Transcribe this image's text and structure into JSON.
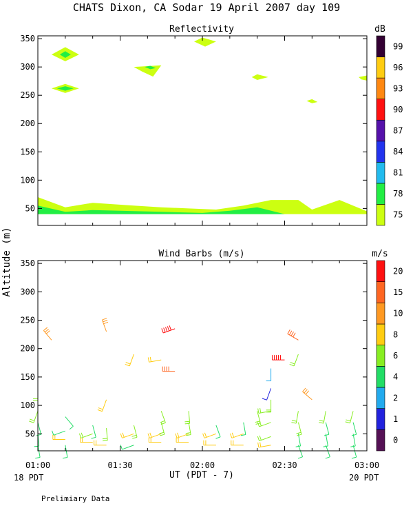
{
  "figure": {
    "title": "CHATS Dixon, CA  Sodar  19 April 2007  day 109",
    "ylabel": "Altitude (m)",
    "xlabel": "UT  (PDT - 7)",
    "footer_left": "18 PDT",
    "footer_right": "20 PDT",
    "note": "Prelimiary Data"
  },
  "chart_data": [
    {
      "type": "heatmap",
      "title": "Reflectivity",
      "unit": "dB",
      "x_ticks": [
        "01:00",
        "01:30",
        "02:00",
        "02:30",
        "03:00"
      ],
      "xlim": [
        "01:00",
        "03:00"
      ],
      "ylim": [
        20,
        355
      ],
      "y_ticks": [
        50,
        100,
        150,
        200,
        250,
        300,
        350
      ],
      "colorbar": {
        "labels": [
          "75",
          "78",
          "81",
          "84",
          "87",
          "90",
          "93",
          "96",
          "99"
        ],
        "colors": [
          "#ccff11",
          "#22ee44",
          "#22bbee",
          "#2233ee",
          "#5511aa",
          "#ff1111",
          "#ff8811",
          "#ffcc11",
          "#330033"
        ]
      },
      "contours": [
        {
          "level": 75,
          "color": "#ccff11",
          "points": [
            [
              "01:00",
              70
            ],
            [
              "01:10",
              52
            ],
            [
              "01:20",
              60
            ],
            [
              "01:35",
              55
            ],
            [
              "01:45",
              52
            ],
            [
              "01:55",
              50
            ],
            [
              "02:05",
              48
            ],
            [
              "02:15",
              55
            ],
            [
              "02:25",
              65
            ],
            [
              "02:35",
              65
            ],
            [
              "02:40",
              48
            ],
            [
              "02:50",
              65
            ],
            [
              "03:00",
              45
            ],
            [
              "03:00",
              40
            ],
            [
              "01:00",
              40
            ]
          ]
        },
        {
          "level": 78,
          "color": "#22ee44",
          "points": [
            [
              "01:00",
              55
            ],
            [
              "01:10",
              44
            ],
            [
              "01:20",
              47
            ],
            [
              "01:30",
              46
            ],
            [
              "01:45",
              44
            ],
            [
              "02:00",
              42
            ],
            [
              "02:10",
              46
            ],
            [
              "02:20",
              52
            ],
            [
              "02:30",
              40
            ],
            [
              "01:00",
              40
            ]
          ]
        },
        {
          "level": 75,
          "color": "#ccff11",
          "points": [
            [
              "01:05",
              322
            ],
            [
              "01:10",
              335
            ],
            [
              "01:15",
              322
            ],
            [
              "01:10",
              310
            ]
          ]
        },
        {
          "level": 78,
          "color": "#22ee44",
          "points": [
            [
              "01:08",
              322
            ],
            [
              "01:10",
              328
            ],
            [
              "01:12",
              322
            ],
            [
              "01:10",
              316
            ]
          ]
        },
        {
          "level": 75,
          "color": "#ccff11",
          "points": [
            [
              "01:05",
              262
            ],
            [
              "01:10",
              270
            ],
            [
              "01:15",
              262
            ],
            [
              "01:10",
              254
            ]
          ]
        },
        {
          "level": 78,
          "color": "#22ee44",
          "points": [
            [
              "01:07",
              262
            ],
            [
              "01:10",
              266
            ],
            [
              "01:13",
              262
            ],
            [
              "01:10",
              258
            ]
          ]
        },
        {
          "level": 75,
          "color": "#ccff11",
          "points": [
            [
              "01:35",
              300
            ],
            [
              "01:45",
              303
            ],
            [
              "01:42",
              283
            ],
            [
              "01:38",
              292
            ]
          ]
        },
        {
          "level": 78,
          "color": "#22ee44",
          "points": [
            [
              "01:39",
              300
            ],
            [
              "01:41",
              302
            ],
            [
              "01:43",
              298
            ],
            [
              "01:41",
              296
            ]
          ]
        },
        {
          "level": 75,
          "color": "#ccff11",
          "points": [
            [
              "01:57",
              345
            ],
            [
              "02:00",
              352
            ],
            [
              "02:05",
              345
            ],
            [
              "02:01",
              336
            ]
          ]
        },
        {
          "level": 75,
          "color": "#ccff11",
          "points": [
            [
              "02:18",
              282
            ],
            [
              "02:20",
              287
            ],
            [
              "02:24",
              282
            ],
            [
              "02:20",
              277
            ]
          ]
        },
        {
          "level": 75,
          "color": "#ccff11",
          "points": [
            [
              "02:38",
              240
            ],
            [
              "02:40",
              243
            ],
            [
              "02:42",
              238
            ],
            [
              "02:40",
              236
            ]
          ]
        },
        {
          "level": 75,
          "color": "#ccff11",
          "points": [
            [
              "02:57",
              282
            ],
            [
              "03:00",
              285
            ],
            [
              "03:00",
              276
            ],
            [
              "02:58",
              278
            ]
          ]
        }
      ]
    },
    {
      "type": "scatter",
      "title": "Wind Barbs (m/s)",
      "unit": "m/s",
      "x_ticks": [
        "01:00",
        "01:30",
        "02:00",
        "02:30",
        "03:00"
      ],
      "xlim": [
        "01:00",
        "03:00"
      ],
      "ylim": [
        20,
        355
      ],
      "y_ticks": [
        50,
        100,
        150,
        200,
        250,
        300,
        350
      ],
      "colorbar": {
        "labels": [
          "0",
          "1",
          "2",
          "4",
          "6",
          "8",
          "10",
          "15",
          "20"
        ],
        "colors": [
          "#551155",
          "#2222dd",
          "#22aaee",
          "#22dd66",
          "#88ee22",
          "#ffcc11",
          "#ff9922",
          "#ff6622",
          "#ff1111"
        ]
      },
      "barbs": [
        {
          "t": "01:00",
          "z": 30,
          "speed": 4,
          "dir": 170
        },
        {
          "t": "01:00",
          "z": 50,
          "speed": 4,
          "dir": 175
        },
        {
          "t": "01:00",
          "z": 70,
          "speed": 4,
          "dir": 165
        },
        {
          "t": "01:00",
          "z": 90,
          "speed": 6,
          "dir": 200
        },
        {
          "t": "01:00",
          "z": 130,
          "speed": 6,
          "dir": 180
        },
        {
          "t": "01:05",
          "z": 215,
          "speed": 10,
          "dir": 320
        },
        {
          "t": "01:10",
          "z": 30,
          "speed": 4,
          "dir": 170
        },
        {
          "t": "01:10",
          "z": 40,
          "speed": 8,
          "dir": 270
        },
        {
          "t": "01:10",
          "z": 55,
          "speed": 4,
          "dir": 250
        },
        {
          "t": "01:10",
          "z": 80,
          "speed": 4,
          "dir": 140
        },
        {
          "t": "01:20",
          "z": 35,
          "speed": 8,
          "dir": 270
        },
        {
          "t": "01:20",
          "z": 50,
          "speed": 6,
          "dir": 250
        },
        {
          "t": "01:20",
          "z": 65,
          "speed": 4,
          "dir": 165
        },
        {
          "t": "01:25",
          "z": 30,
          "speed": 8,
          "dir": 270
        },
        {
          "t": "01:25",
          "z": 60,
          "speed": 6,
          "dir": 175
        },
        {
          "t": "01:25",
          "z": 110,
          "speed": 8,
          "dir": 200
        },
        {
          "t": "01:25",
          "z": 230,
          "speed": 10,
          "dir": 340
        },
        {
          "t": "01:35",
          "z": 30,
          "speed": 4,
          "dir": 250
        },
        {
          "t": "01:35",
          "z": 50,
          "speed": 8,
          "dir": 250
        },
        {
          "t": "01:35",
          "z": 65,
          "speed": 6,
          "dir": 165
        },
        {
          "t": "01:35",
          "z": 190,
          "speed": 8,
          "dir": 200
        },
        {
          "t": "01:45",
          "z": 35,
          "speed": 8,
          "dir": 270
        },
        {
          "t": "01:45",
          "z": 50,
          "speed": 8,
          "dir": 250
        },
        {
          "t": "01:45",
          "z": 70,
          "speed": 6,
          "dir": 165
        },
        {
          "t": "01:45",
          "z": 90,
          "speed": 6,
          "dir": 160
        },
        {
          "t": "01:45",
          "z": 180,
          "speed": 8,
          "dir": 260
        },
        {
          "t": "01:50",
          "z": 235,
          "speed": 20,
          "dir": 250
        },
        {
          "t": "01:50",
          "z": 160,
          "speed": 15,
          "dir": 270
        },
        {
          "t": "01:55",
          "z": 35,
          "speed": 8,
          "dir": 270
        },
        {
          "t": "01:55",
          "z": 50,
          "speed": 8,
          "dir": 250
        },
        {
          "t": "01:55",
          "z": 70,
          "speed": 6,
          "dir": 170
        },
        {
          "t": "01:55",
          "z": 90,
          "speed": 6,
          "dir": 175
        },
        {
          "t": "02:05",
          "z": 30,
          "speed": 8,
          "dir": 270
        },
        {
          "t": "02:05",
          "z": 50,
          "speed": 8,
          "dir": 250
        },
        {
          "t": "02:05",
          "z": 65,
          "speed": 4,
          "dir": 160
        },
        {
          "t": "02:15",
          "z": 30,
          "speed": 8,
          "dir": 270
        },
        {
          "t": "02:15",
          "z": 50,
          "speed": 8,
          "dir": 250
        },
        {
          "t": "02:15",
          "z": 70,
          "speed": 4,
          "dir": 170
        },
        {
          "t": "02:20",
          "z": 90,
          "speed": 6,
          "dir": 165
        },
        {
          "t": "02:25",
          "z": 30,
          "speed": 8,
          "dir": 260
        },
        {
          "t": "02:25",
          "z": 45,
          "speed": 6,
          "dir": 250
        },
        {
          "t": "02:25",
          "z": 70,
          "speed": 6,
          "dir": 250
        },
        {
          "t": "02:25",
          "z": 90,
          "speed": 6,
          "dir": 260
        },
        {
          "t": "02:25",
          "z": 110,
          "speed": 6,
          "dir": 180
        },
        {
          "t": "02:25",
          "z": 130,
          "speed": 1,
          "dir": 200
        },
        {
          "t": "02:25",
          "z": 165,
          "speed": 2,
          "dir": 180
        },
        {
          "t": "02:30",
          "z": 180,
          "speed": 20,
          "dir": 270
        },
        {
          "t": "02:35",
          "z": 30,
          "speed": 4,
          "dir": 160
        },
        {
          "t": "02:35",
          "z": 50,
          "speed": 4,
          "dir": 170
        },
        {
          "t": "02:35",
          "z": 70,
          "speed": 6,
          "dir": 165
        },
        {
          "t": "02:35",
          "z": 90,
          "speed": 6,
          "dir": 190
        },
        {
          "t": "02:35",
          "z": 190,
          "speed": 6,
          "dir": 200
        },
        {
          "t": "02:35",
          "z": 215,
          "speed": 15,
          "dir": 300
        },
        {
          "t": "02:40",
          "z": 110,
          "speed": 10,
          "dir": 310
        },
        {
          "t": "02:45",
          "z": 30,
          "speed": 4,
          "dir": 160
        },
        {
          "t": "02:45",
          "z": 50,
          "speed": 4,
          "dir": 170
        },
        {
          "t": "02:45",
          "z": 70,
          "speed": 4,
          "dir": 165
        },
        {
          "t": "02:45",
          "z": 90,
          "speed": 6,
          "dir": 190
        },
        {
          "t": "02:55",
          "z": 30,
          "speed": 4,
          "dir": 165
        },
        {
          "t": "02:55",
          "z": 50,
          "speed": 4,
          "dir": 170
        },
        {
          "t": "02:55",
          "z": 70,
          "speed": 4,
          "dir": 165
        },
        {
          "t": "02:55",
          "z": 90,
          "speed": 6,
          "dir": 195
        }
      ]
    }
  ]
}
